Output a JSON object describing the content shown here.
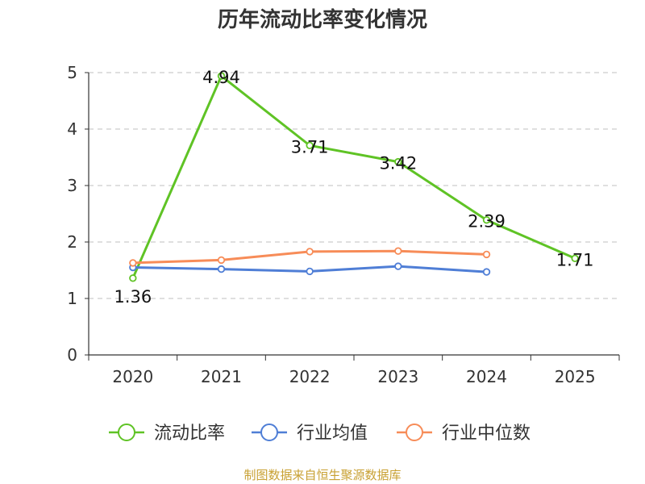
{
  "chart_data": {
    "type": "line",
    "title": "历年流动比率变化情况",
    "categories": [
      "2020",
      "2021",
      "2022",
      "2023",
      "2024",
      "2025"
    ],
    "ylim": [
      0,
      5
    ],
    "yticks": [
      0,
      1,
      2,
      3,
      4,
      5
    ],
    "grid": true,
    "legend_position": "bottom",
    "series": [
      {
        "name": "流动比率",
        "color": "#5fc325",
        "values": [
          1.36,
          4.94,
          3.71,
          3.42,
          2.39,
          1.71
        ],
        "labels": true
      },
      {
        "name": "行业均值",
        "color": "#4f7ed6",
        "values": [
          1.55,
          1.52,
          1.48,
          1.57,
          1.47,
          null
        ],
        "labels": false
      },
      {
        "name": "行业中位数",
        "color": "#f78c58",
        "values": [
          1.63,
          1.68,
          1.83,
          1.84,
          1.78,
          null
        ],
        "labels": false
      }
    ]
  },
  "footer": {
    "source": "制图数据来自恒生聚源数据库"
  }
}
